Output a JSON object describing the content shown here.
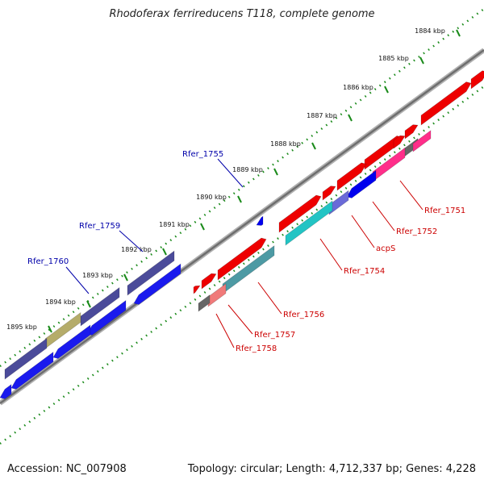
{
  "title": "Rhodoferax ferrireducens T118, complete genome",
  "footer": {
    "accession": "Accession: NC_007908",
    "summary": "Topology: circular; Length: 4,712,337 bp; Genes: 4,228"
  },
  "colors": {
    "backbone": "#888888",
    "tick": "#1a8a1a",
    "plus_strand_gene": "#ff0000",
    "minus_strand_gene": "#0000ff",
    "label_plus": "#cc0000",
    "label_minus": "#0000aa"
  },
  "kbp_ticks": [
    "1884 kbp",
    "1885 kbp",
    "1886 kbp",
    "1887 kbp",
    "1888 kbp",
    "1889 kbp",
    "1890 kbp",
    "1891 kbp",
    "1892 kbp",
    "1893 kbp",
    "1894 kbp",
    "1895 kbp"
  ],
  "gene_labels": [
    {
      "text": "Rfer_1755",
      "strand": "outer"
    },
    {
      "text": "Rfer_1759",
      "strand": "outer"
    },
    {
      "text": "Rfer_1760",
      "strand": "outer"
    },
    {
      "text": "Rfer_1751",
      "strand": "inner"
    },
    {
      "text": "Rfer_1752",
      "strand": "inner"
    },
    {
      "text": "acpS",
      "strand": "inner"
    },
    {
      "text": "Rfer_1754",
      "strand": "inner"
    },
    {
      "text": "Rfer_1756",
      "strand": "inner"
    },
    {
      "text": "Rfer_1757",
      "strand": "inner"
    },
    {
      "text": "Rfer_1758",
      "strand": "inner"
    }
  ]
}
